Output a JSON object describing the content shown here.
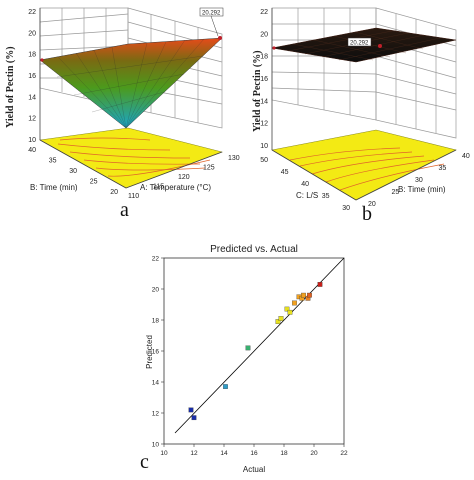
{
  "colors": {
    "surface_high": "#e84a1a",
    "surface_mid": "#7cc11e",
    "surface_low": "#1aa6c9",
    "contour_fill": "#f3ea14",
    "contour_line": "#e0642a",
    "surface_dark": "#151515",
    "marker_red": "#c0202a",
    "fit_line": "#000000"
  },
  "chart_data": [
    {
      "type": "surface3d",
      "panel_label": "a",
      "zlabel": "Yield of Pectin (%)",
      "zticks": [
        "10",
        "12",
        "14",
        "16",
        "18",
        "20",
        "22"
      ],
      "xlabel": "A: Temperature (°C)",
      "xticks": [
        "110",
        "115",
        "120",
        "125",
        "130"
      ],
      "ylabel": "B: Time (min)",
      "yticks": [
        "20",
        "25",
        "30",
        "35",
        "40"
      ],
      "annotation": "20.292"
    },
    {
      "type": "surface3d",
      "panel_label": "b",
      "zlabel": "Yield of Pectin (%)",
      "zticks": [
        "10",
        "12",
        "14",
        "16",
        "18",
        "20",
        "22"
      ],
      "xlabel": "B: Time (min)",
      "xticks": [
        "20",
        "25",
        "30",
        "35",
        "40"
      ],
      "ylabel": "C: L/S",
      "yticks": [
        "30",
        "35",
        "40",
        "45",
        "50"
      ],
      "annotation": "20.292"
    },
    {
      "type": "scatter",
      "panel_label": "c",
      "title": "Predicted vs. Actual",
      "xlabel": "Actual",
      "ylabel": "Predicted",
      "xticks": [
        "10",
        "12",
        "14",
        "16",
        "18",
        "20",
        "22"
      ],
      "yticks": [
        "10",
        "12",
        "14",
        "16",
        "18",
        "20",
        "22"
      ],
      "xlim": [
        10,
        22
      ],
      "ylim": [
        10,
        22
      ],
      "fit_line": {
        "x": [
          10,
          22
        ],
        "y": [
          10,
          22
        ]
      },
      "points": [
        {
          "x": 11.8,
          "y": 12.2,
          "color": "#1a2ea8"
        },
        {
          "x": 12.0,
          "y": 11.7,
          "color": "#1a2ea8"
        },
        {
          "x": 14.1,
          "y": 13.7,
          "color": "#2f9cc8"
        },
        {
          "x": 15.6,
          "y": 16.2,
          "color": "#38b070"
        },
        {
          "x": 17.6,
          "y": 17.9,
          "color": "#e6e020"
        },
        {
          "x": 17.8,
          "y": 18.1,
          "color": "#e6e020"
        },
        {
          "x": 18.2,
          "y": 18.7,
          "color": "#e6e020"
        },
        {
          "x": 18.4,
          "y": 18.5,
          "color": "#e6e020"
        },
        {
          "x": 18.7,
          "y": 19.1,
          "color": "#f0a020"
        },
        {
          "x": 19.0,
          "y": 19.5,
          "color": "#f0a020"
        },
        {
          "x": 19.2,
          "y": 19.4,
          "color": "#f0a020"
        },
        {
          "x": 19.3,
          "y": 19.6,
          "color": "#f0a020"
        },
        {
          "x": 19.6,
          "y": 19.4,
          "color": "#e88020"
        },
        {
          "x": 19.7,
          "y": 19.6,
          "color": "#e06020"
        },
        {
          "x": 20.4,
          "y": 20.3,
          "color": "#c8201a"
        }
      ]
    }
  ]
}
